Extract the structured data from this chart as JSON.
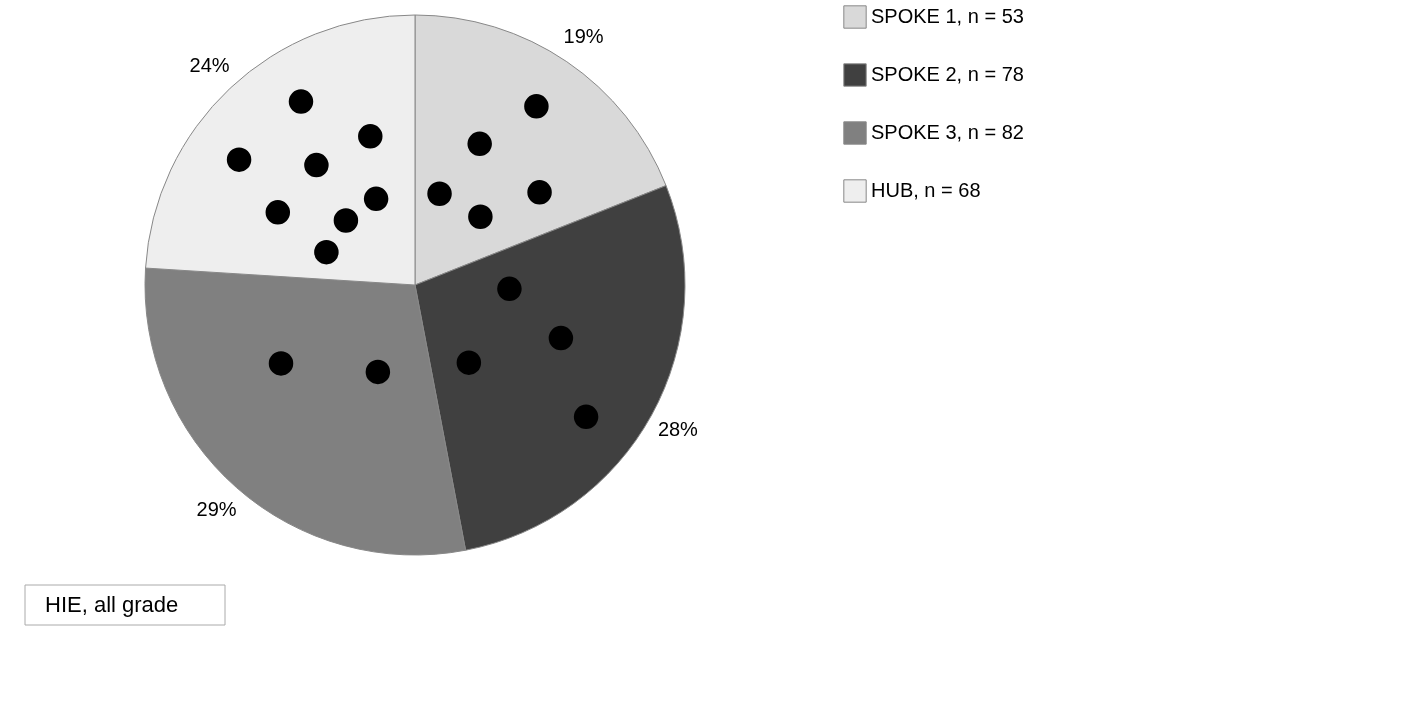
{
  "chart_data": {
    "type": "pie",
    "categories": [
      "SPOKE 1, n = 53",
      "SPOKE 2, n = 78",
      "SPOKE 3, n = 82",
      "HUB, n = 68"
    ],
    "values": [
      19,
      28,
      29,
      24
    ],
    "value_labels": [
      "19%",
      "28%",
      "29%",
      "24%"
    ],
    "colors": [
      "#d9d9d9",
      "#404040",
      "#808080",
      "#eeeeee"
    ],
    "annotations": [
      "HIE, all grade"
    ],
    "legend": "right"
  }
}
